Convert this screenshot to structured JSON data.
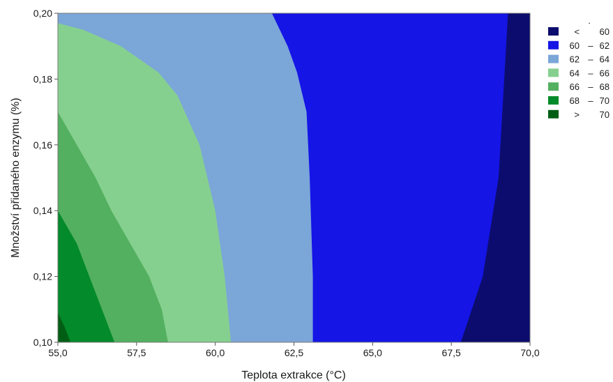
{
  "chart_data": {
    "type": "contour",
    "title": "",
    "xlabel": "Teplota extrakce (°C)",
    "ylabel": "Množství přidaného enzymu (%)",
    "xlim": [
      55.0,
      70.0
    ],
    "ylim": [
      0.1,
      0.2
    ],
    "xticks": [
      "55,0",
      "57,5",
      "60,0",
      "62,5",
      "65,0",
      "67,5",
      "70,0"
    ],
    "yticks": [
      "0,10",
      "0,12",
      "0,14",
      "0,16",
      "0,18",
      "0,20"
    ],
    "xtick_values": [
      55.0,
      57.5,
      60.0,
      62.5,
      65.0,
      67.5,
      70.0
    ],
    "ytick_values": [
      0.1,
      0.12,
      0.14,
      0.16,
      0.18,
      0.2
    ],
    "legend_position": "right",
    "legend_marker": ".",
    "levels": [
      {
        "label": "< 60",
        "parts": [
          "<",
          "",
          "60"
        ],
        "color": "#0c0c6e"
      },
      {
        "label": "60 – 62",
        "parts": [
          "60",
          "–",
          "62"
        ],
        "color": "#1515e6"
      },
      {
        "label": "62 – 64",
        "parts": [
          "62",
          "–",
          "64"
        ],
        "color": "#7ba6d8"
      },
      {
        "label": "64 – 66",
        "parts": [
          "64",
          "–",
          "66"
        ],
        "color": "#86d08f"
      },
      {
        "label": "66 – 68",
        "parts": [
          "66",
          "–",
          "68"
        ],
        "color": "#53b060"
      },
      {
        "label": "68 – 70",
        "parts": [
          "68",
          "–",
          "70"
        ],
        "color": "#038a2a"
      },
      {
        "label": "> 70",
        "parts": [
          ">",
          "",
          "70"
        ],
        "color": "#005e14"
      }
    ],
    "contour_boundaries": [
      {
        "between": "< 60 | 60 – 62",
        "points": [
          [
            67.8,
            0.1
          ],
          [
            68.5,
            0.12
          ],
          [
            69.0,
            0.15
          ],
          [
            69.3,
            0.2
          ]
        ]
      },
      {
        "between": "60 – 62 | 62 – 64",
        "points": [
          [
            63.1,
            0.1
          ],
          [
            63.1,
            0.12
          ],
          [
            63.0,
            0.15
          ],
          [
            62.9,
            0.17
          ],
          [
            62.6,
            0.182
          ],
          [
            62.3,
            0.19
          ],
          [
            62.0,
            0.196
          ],
          [
            61.8,
            0.2
          ]
        ]
      },
      {
        "between": "62 – 64 | 64 – 66",
        "points": [
          [
            60.5,
            0.1
          ],
          [
            60.3,
            0.12
          ],
          [
            60.0,
            0.14
          ],
          [
            59.5,
            0.16
          ],
          [
            58.8,
            0.175
          ],
          [
            58.2,
            0.182
          ],
          [
            57.0,
            0.19
          ],
          [
            55.8,
            0.195
          ],
          [
            55.0,
            0.197
          ]
        ]
      },
      {
        "between": "64 – 66 | 66 – 68",
        "points": [
          [
            58.5,
            0.1
          ],
          [
            58.3,
            0.11
          ],
          [
            57.9,
            0.12
          ],
          [
            57.3,
            0.13
          ],
          [
            56.7,
            0.14
          ],
          [
            56.2,
            0.15
          ],
          [
            55.6,
            0.16
          ],
          [
            55.0,
            0.17
          ]
        ]
      },
      {
        "between": "66 – 68 | 68 – 70",
        "points": [
          [
            56.8,
            0.1
          ],
          [
            56.4,
            0.11
          ],
          [
            56.0,
            0.12
          ],
          [
            55.6,
            0.13
          ],
          [
            55.0,
            0.14
          ]
        ]
      },
      {
        "between": "68 – 70 | > 70",
        "points": [
          [
            55.4,
            0.1
          ],
          [
            55.2,
            0.105
          ],
          [
            55.0,
            0.109
          ]
        ]
      }
    ]
  }
}
